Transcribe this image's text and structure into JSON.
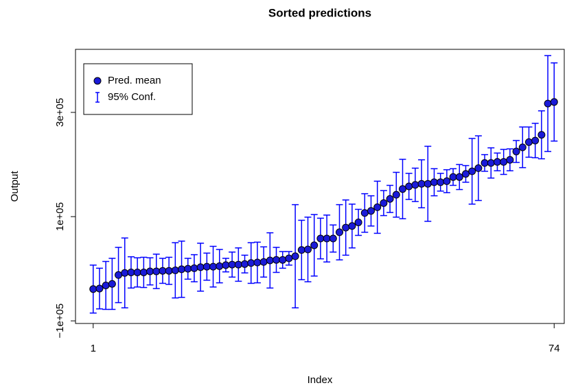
{
  "chart_data": {
    "type": "errorbar",
    "title": "Sorted predictions",
    "x_label": "Index",
    "y_label": "Output",
    "x": [
      1,
      2,
      3,
      4,
      5,
      6,
      7,
      8,
      9,
      10,
      11,
      12,
      13,
      14,
      15,
      16,
      17,
      18,
      19,
      20,
      21,
      22,
      23,
      24,
      25,
      26,
      27,
      28,
      29,
      30,
      31,
      32,
      33,
      34,
      35,
      36,
      37,
      38,
      39,
      40,
      41,
      42,
      43,
      44,
      45,
      46,
      47,
      48,
      49,
      50,
      51,
      52,
      53,
      54,
      55,
      56,
      57,
      58,
      59,
      60,
      61,
      62,
      63,
      64,
      65,
      66,
      67,
      68,
      69,
      70,
      71,
      72,
      73,
      74
    ],
    "series": [
      {
        "name": "Pred. mean",
        "error_name": "95% Conf.",
        "color": "#0000ff",
        "marker_fill": "#1a1ad8",
        "values": [
          -39000,
          -38000,
          -32000,
          -29000,
          -12000,
          -8000,
          -7000,
          -7000,
          -7000,
          -5000,
          -5000,
          -4000,
          -4000,
          -3000,
          -1000,
          0,
          1000,
          3000,
          4000,
          4000,
          5000,
          7000,
          8000,
          8000,
          9000,
          11000,
          12000,
          13000,
          16000,
          17000,
          17000,
          20000,
          24000,
          36000,
          37000,
          45000,
          58000,
          58000,
          58000,
          70000,
          79000,
          82000,
          89000,
          107000,
          111000,
          118000,
          126000,
          134000,
          142000,
          153000,
          158000,
          161000,
          163000,
          163000,
          166000,
          166000,
          168000,
          176000,
          176000,
          182000,
          187000,
          193000,
          203000,
          203000,
          205000,
          205000,
          209000,
          225000,
          233000,
          243000,
          246000,
          257000,
          317000,
          320000
        ],
        "errors": [
          46000,
          39000,
          46000,
          49000,
          53000,
          67000,
          30000,
          28000,
          29000,
          26000,
          33000,
          24000,
          26000,
          53000,
          54000,
          20000,
          26000,
          46000,
          26000,
          39000,
          32000,
          13000,
          24000,
          32000,
          17000,
          39000,
          39000,
          29000,
          53000,
          24000,
          16000,
          13000,
          99000,
          57000,
          62000,
          59000,
          39000,
          45000,
          26000,
          53000,
          53000,
          42000,
          25000,
          37000,
          29000,
          50000,
          24000,
          26000,
          43000,
          57000,
          25000,
          32000,
          46000,
          72000,
          26000,
          17000,
          22000,
          16000,
          24000,
          16000,
          63000,
          62000,
          16000,
          29000,
          17000,
          24000,
          21000,
          21000,
          39000,
          29000,
          33000,
          46000,
          92000,
          75000
        ]
      }
    ],
    "xlim": [
      -1.8,
      75.6
    ],
    "ylim": [
      -105000,
      421000
    ],
    "xticks": [
      1,
      74
    ],
    "yticks": [
      {
        "value": -100000,
        "label": "−1e+05"
      },
      {
        "value": 100000,
        "label": "1e+05"
      },
      {
        "value": 300000,
        "label": "3e+05"
      }
    ],
    "legend_position": "top-left"
  }
}
